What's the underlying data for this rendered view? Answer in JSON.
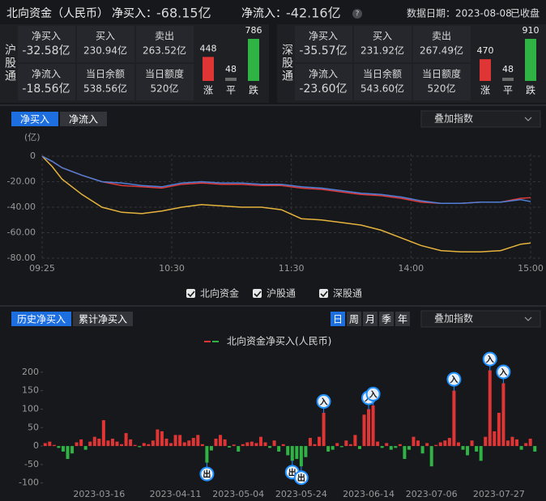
{
  "header": {
    "title": "北向资金（人民币）",
    "net_buy": {
      "label": "净买入：",
      "value": "-68.15亿",
      "color": "#3cc24a"
    },
    "net_flow": {
      "label": "净流入：",
      "value": "-42.16亿",
      "color": "#3cc24a"
    },
    "help": "?",
    "date": "数据日期：2023-08-08",
    "status": "已收盘"
  },
  "panels": [
    {
      "name": "沪股通",
      "cells": [
        {
          "label": "净买入",
          "value": "-32.58亿",
          "color": "#3cc24a"
        },
        {
          "label": "买入",
          "value": "230.94亿"
        },
        {
          "label": "卖出",
          "value": "263.52亿"
        },
        {
          "label": "净流入",
          "value": "-18.56亿",
          "color": "#3cc24a"
        },
        {
          "label": "当日余额",
          "value": "538.56亿"
        },
        {
          "label": "当日额度",
          "value": "520亿"
        }
      ],
      "breadth": {
        "values": [
          448,
          48,
          786
        ],
        "labels": [
          "涨",
          "平",
          "跌"
        ],
        "colors": [
          "#e03535",
          "#6b6b6b",
          "#2fb344"
        ]
      }
    },
    {
      "name": "深股通",
      "cells": [
        {
          "label": "净买入",
          "value": "-35.57亿",
          "color": "#3cc24a"
        },
        {
          "label": "买入",
          "value": "231.92亿"
        },
        {
          "label": "卖出",
          "value": "267.49亿"
        },
        {
          "label": "净流入",
          "value": "-23.60亿",
          "color": "#3cc24a"
        },
        {
          "label": "当日余额",
          "value": "543.60亿"
        },
        {
          "label": "当日额度",
          "value": "520亿"
        }
      ],
      "breadth": {
        "values": [
          470,
          48,
          910
        ],
        "labels": [
          "涨",
          "平",
          "跌"
        ],
        "colors": [
          "#e03535",
          "#6b6b6b",
          "#2fb344"
        ]
      }
    }
  ],
  "chart_data": [
    {
      "type": "line",
      "tabs": [
        "净买入",
        "净流入"
      ],
      "overlay": "叠加指数",
      "unit": "(亿)",
      "x": [
        0,
        5,
        10,
        20,
        30,
        40,
        50,
        60,
        70,
        80,
        90,
        100,
        110,
        120,
        130,
        140,
        150,
        160,
        170,
        180,
        190,
        200,
        210,
        220,
        230,
        240,
        245
      ],
      "series": [
        {
          "name": "北向资金",
          "color": "#e6b33c",
          "values": [
            0,
            -8,
            -18,
            -30,
            -40,
            -44,
            -45,
            -43,
            -40,
            -38,
            -39,
            -40,
            -40,
            -42,
            -49,
            -50,
            -52,
            -54,
            -58,
            -64,
            -70,
            -74,
            -75,
            -75,
            -74,
            -69,
            -68.15
          ]
        },
        {
          "name": "沪股通",
          "color": "#e03a3a",
          "values": [
            0,
            -4,
            -9,
            -15,
            -20,
            -23,
            -24,
            -25,
            -22,
            -21,
            -22,
            -22,
            -23,
            -23,
            -25,
            -26,
            -28,
            -30,
            -31,
            -33,
            -36,
            -37,
            -37,
            -36,
            -36,
            -33,
            -32.58
          ]
        },
        {
          "name": "深股通",
          "color": "#4f7fd6",
          "values": [
            0,
            -4,
            -9,
            -15,
            -20,
            -21,
            -23,
            -24,
            -21,
            -20,
            -21,
            -21,
            -22,
            -22,
            -24,
            -25,
            -27,
            -29,
            -30,
            -32,
            -35,
            -37,
            -37,
            -36,
            -36,
            -34,
            -35.57
          ]
        }
      ],
      "xlim": [
        0,
        245
      ],
      "xticks": [
        {
          "value": 0,
          "label": "09:25"
        },
        {
          "value": 65,
          "label": "10:30"
        },
        {
          "value": 125,
          "label": "11:30"
        },
        {
          "value": 185,
          "label": "14:00"
        },
        {
          "value": 245,
          "label": "15:00"
        }
      ],
      "ylim": [
        -80,
        0
      ],
      "yticks": [
        0,
        {
          "value": -20,
          "label": "-20.00"
        },
        {
          "value": -40,
          "label": "-40.00"
        },
        {
          "value": -60,
          "label": "-60.00"
        },
        {
          "value": -80,
          "label": "-80.00"
        }
      ],
      "grid": true
    },
    {
      "type": "bar",
      "tabs": [
        "历史净买入",
        "累计净买入"
      ],
      "periods": [
        "日",
        "周",
        "月",
        "季",
        "年"
      ],
      "overlay": "叠加指数",
      "categories": [
        null,
        null,
        null,
        null,
        null,
        null,
        null,
        null,
        null,
        null,
        null,
        null,
        "2023-03-16",
        null,
        null,
        null,
        null,
        null,
        null,
        null,
        null,
        null,
        null,
        null,
        null,
        null,
        null,
        null,
        null,
        "2023-04-11",
        null,
        null,
        null,
        null,
        null,
        null,
        null,
        null,
        null,
        null,
        null,
        null,
        null,
        "2023-05-04",
        null,
        null,
        null,
        null,
        null,
        null,
        null,
        null,
        null,
        null,
        null,
        null,
        null,
        "2023-05-24",
        null,
        null,
        null,
        null,
        null,
        null,
        null,
        null,
        null,
        null,
        null,
        null,
        null,
        null,
        "2023-06-14",
        null,
        null,
        null,
        null,
        null,
        null,
        null,
        null,
        null,
        null,
        null,
        null,
        null,
        "2023-07-06",
        null,
        null,
        null,
        null,
        null,
        null,
        null,
        null,
        null,
        null,
        null,
        null,
        null,
        null,
        "2023-07-27",
        null,
        null,
        null,
        null,
        null,
        null,
        null,
        null
      ],
      "series": [
        {
          "name": "北向资金净买入(人民币)",
          "color": "#e03535",
          "down_color": "#2fb344",
          "values": [
            8,
            12,
            3,
            -5,
            -15,
            -35,
            -20,
            10,
            18,
            -10,
            12,
            25,
            20,
            70,
            15,
            20,
            12,
            5,
            35,
            18,
            3,
            -3,
            8,
            5,
            15,
            45,
            40,
            20,
            8,
            30,
            30,
            10,
            15,
            22,
            30,
            5,
            -45,
            -12,
            20,
            30,
            18,
            -4,
            4,
            -15,
            5,
            10,
            12,
            8,
            25,
            10,
            -5,
            15,
            -15,
            5,
            -25,
            -40,
            -35,
            -55,
            -30,
            22,
            5,
            25,
            90,
            -15,
            -10,
            8,
            -3,
            15,
            5,
            30,
            -8,
            85,
            100,
            110,
            12,
            -5,
            8,
            -10,
            -5,
            5,
            -35,
            -10,
            25,
            15,
            -20,
            8,
            -55,
            3,
            10,
            15,
            22,
            150,
            10,
            -10,
            -25,
            15,
            -15,
            -40,
            25,
            205,
            40,
            90,
            170,
            15,
            25,
            18,
            -10,
            8,
            20,
            -15
          ],
          "flags": [
            null,
            null,
            null,
            null,
            null,
            null,
            null,
            null,
            null,
            null,
            null,
            null,
            null,
            null,
            null,
            null,
            null,
            null,
            null,
            null,
            null,
            null,
            null,
            null,
            null,
            null,
            null,
            null,
            null,
            null,
            null,
            null,
            null,
            null,
            null,
            null,
            "出",
            null,
            null,
            null,
            null,
            null,
            null,
            null,
            null,
            null,
            null,
            null,
            null,
            null,
            null,
            null,
            null,
            null,
            null,
            "出",
            null,
            "出",
            null,
            null,
            null,
            null,
            "入",
            null,
            null,
            null,
            null,
            null,
            null,
            null,
            null,
            null,
            "入",
            "入",
            null,
            null,
            null,
            null,
            null,
            null,
            null,
            null,
            null,
            null,
            null,
            null,
            null,
            null,
            null,
            null,
            null,
            "入",
            null,
            null,
            null,
            null,
            null,
            null,
            null,
            "入",
            null,
            null,
            "入",
            null,
            null,
            null,
            null,
            null,
            null,
            null
          ]
        }
      ],
      "ylim": [
        -105,
        215
      ],
      "yticks": [
        200,
        150,
        100,
        50,
        0,
        -50,
        -100
      ],
      "grid": false
    }
  ]
}
